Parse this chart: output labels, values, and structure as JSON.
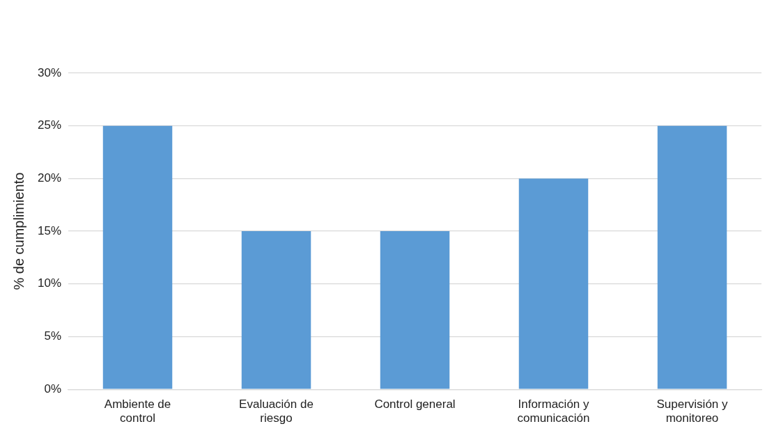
{
  "chart_data": {
    "type": "bar",
    "ylabel": "% de cumplimiento",
    "categories": [
      "Ambiente de control",
      "Evaluación de riesgo",
      "Control general",
      "Información y comunicación",
      "Supervisión y monitoreo"
    ],
    "values": [
      25,
      15,
      15,
      20,
      25
    ],
    "color": "#5b9bd5",
    "ylim": [
      0,
      30
    ],
    "yticks": [
      {
        "value": 0,
        "label": "0%"
      },
      {
        "value": 5,
        "label": "5%"
      },
      {
        "value": 10,
        "label": "10%"
      },
      {
        "value": 15,
        "label": "15%"
      },
      {
        "value": 20,
        "label": "20%"
      },
      {
        "value": 25,
        "label": "25%"
      },
      {
        "value": 30,
        "label": "30%"
      }
    ],
    "grid": "y",
    "legend": false
  }
}
